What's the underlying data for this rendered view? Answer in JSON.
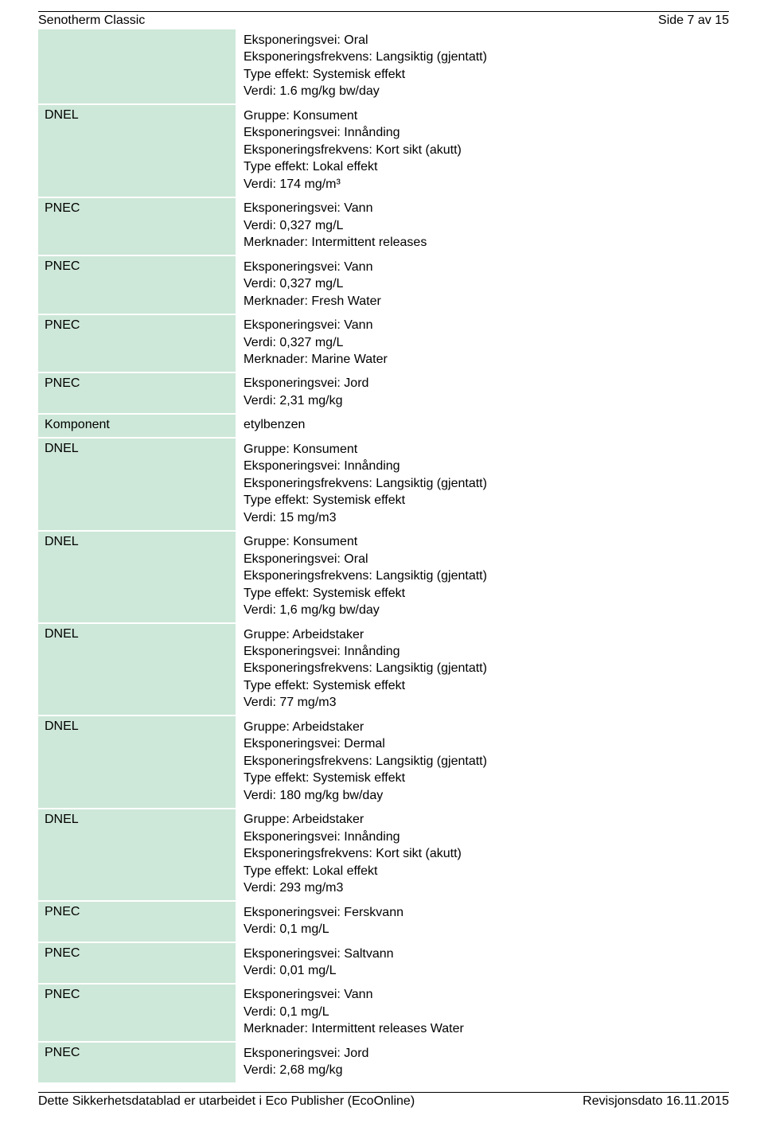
{
  "header": {
    "title": "Senotherm Classic",
    "pagination": "Side 7 av 15"
  },
  "footer": {
    "left": "Dette Sikkerhetsdatablad er utarbeidet i Eco Publisher (EcoOnline)",
    "right": "Revisjonsdato 16.11.2015"
  },
  "colors": {
    "label_bg": "#cde7d8",
    "border": "#000000",
    "text": "#000000"
  },
  "rows": [
    {
      "label": "",
      "lines": [
        "Eksponeringsvei: Oral",
        "Eksponeringsfrekvens: Langsiktig (gjentatt)",
        "Type effekt: Systemisk effekt",
        "Verdi: 1.6 mg/kg bw/day"
      ]
    },
    {
      "label": "DNEL",
      "lines": [
        "Gruppe: Konsument",
        "Eksponeringsvei: Innånding",
        "Eksponeringsfrekvens: Kort sikt (akutt)",
        "Type effekt: Lokal effekt",
        "Verdi: 174 mg/m³"
      ]
    },
    {
      "label": "PNEC",
      "lines": [
        "Eksponeringsvei: Vann",
        "Verdi: 0,327 mg/L",
        "Merknader: Intermittent releases"
      ]
    },
    {
      "label": "PNEC",
      "lines": [
        "Eksponeringsvei: Vann",
        "Verdi: 0,327 mg/L",
        "Merknader: Fresh Water"
      ]
    },
    {
      "label": "PNEC",
      "lines": [
        "Eksponeringsvei: Vann",
        "Verdi: 0,327 mg/L",
        "Merknader: Marine Water"
      ]
    },
    {
      "label": "PNEC",
      "lines": [
        "Eksponeringsvei: Jord",
        "Verdi: 2,31 mg/kg"
      ]
    },
    {
      "label": "Komponent",
      "lines": [
        "etylbenzen"
      ]
    },
    {
      "label": "DNEL",
      "lines": [
        "Gruppe: Konsument",
        "Eksponeringsvei: Innånding",
        "Eksponeringsfrekvens: Langsiktig (gjentatt)",
        "Type effekt: Systemisk effekt",
        "Verdi: 15 mg/m3"
      ]
    },
    {
      "label": "DNEL",
      "lines": [
        "Gruppe: Konsument",
        "Eksponeringsvei: Oral",
        "Eksponeringsfrekvens: Langsiktig (gjentatt)",
        "Type effekt: Systemisk effekt",
        "Verdi: 1,6 mg/kg bw/day"
      ]
    },
    {
      "label": "DNEL",
      "lines": [
        "Gruppe: Arbeidstaker",
        "Eksponeringsvei: Innånding",
        "Eksponeringsfrekvens: Langsiktig (gjentatt)",
        "Type effekt: Systemisk effekt",
        "Verdi: 77 mg/m3"
      ]
    },
    {
      "label": "DNEL",
      "lines": [
        "Gruppe: Arbeidstaker",
        "Eksponeringsvei: Dermal",
        "Eksponeringsfrekvens: Langsiktig (gjentatt)",
        "Type effekt: Systemisk effekt",
        "Verdi: 180 mg/kg bw/day"
      ]
    },
    {
      "label": "DNEL",
      "lines": [
        "Gruppe: Arbeidstaker",
        "Eksponeringsvei: Innånding",
        "Eksponeringsfrekvens: Kort sikt (akutt)",
        "Type effekt: Lokal effekt",
        "Verdi: 293 mg/m3"
      ]
    },
    {
      "label": "PNEC",
      "lines": [
        "Eksponeringsvei: Ferskvann",
        "Verdi: 0,1 mg/L"
      ]
    },
    {
      "label": "PNEC",
      "lines": [
        "Eksponeringsvei: Saltvann",
        "Verdi: 0,01 mg/L"
      ]
    },
    {
      "label": "PNEC",
      "lines": [
        "Eksponeringsvei: Vann",
        "Verdi: 0,1 mg/L",
        "Merknader: Intermittent releases Water"
      ]
    },
    {
      "label": "PNEC",
      "lines": [
        "Eksponeringsvei: Jord",
        "Verdi: 2,68 mg/kg"
      ]
    }
  ]
}
